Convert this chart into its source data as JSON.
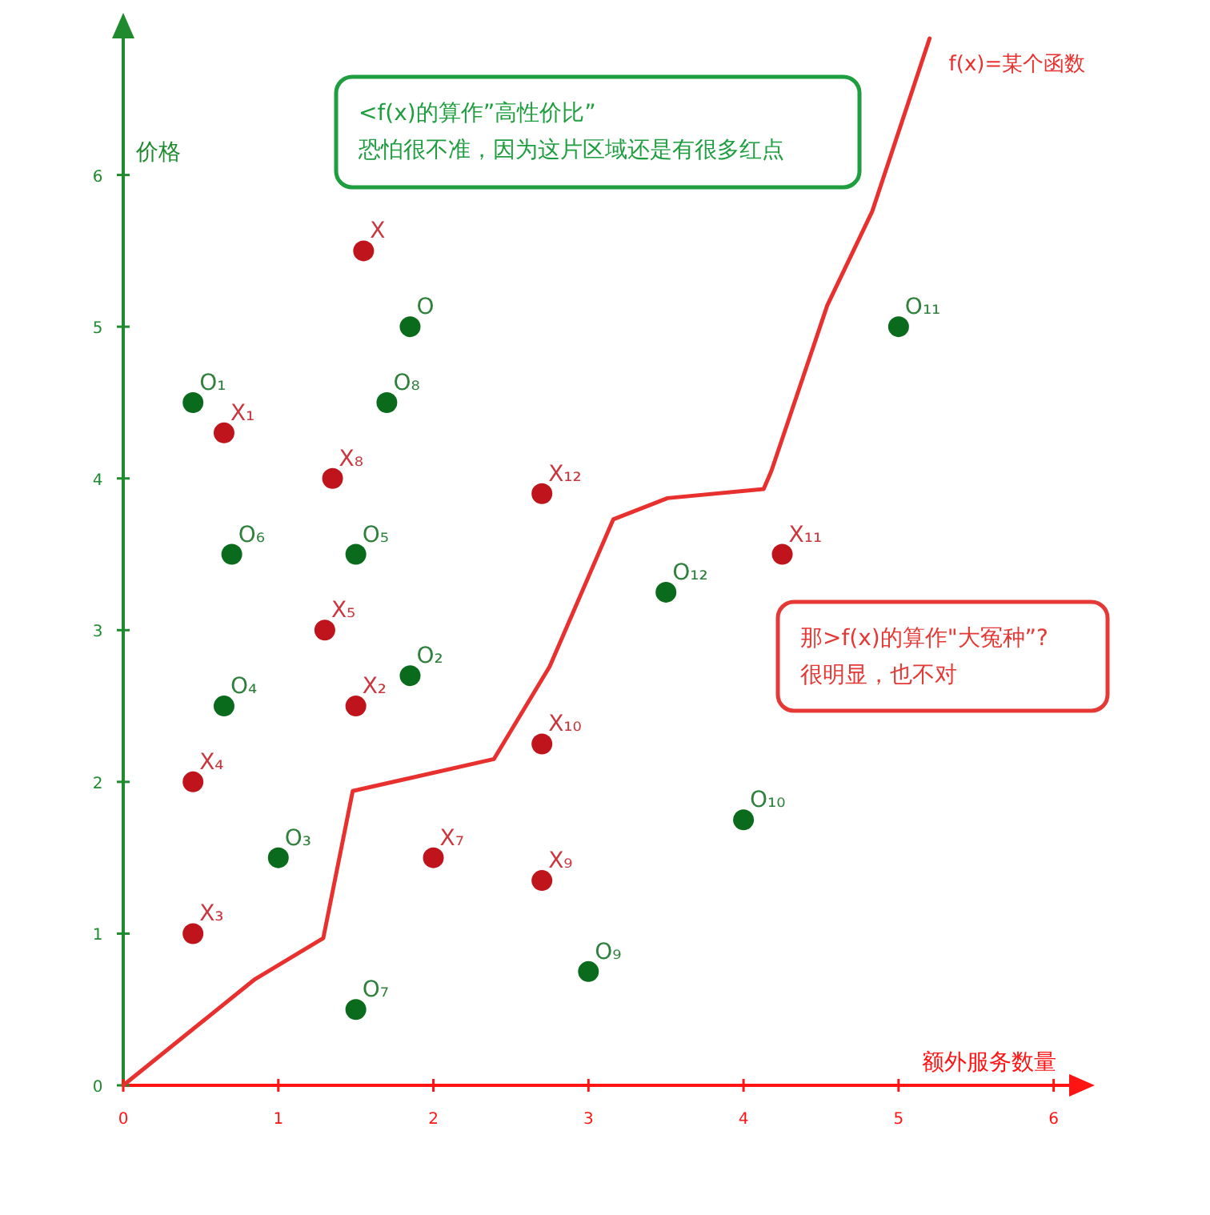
{
  "chart_data": {
    "type": "scatter",
    "xlabel": "额外服务数量",
    "ylabel": "价格",
    "xlim": [
      0,
      6.1
    ],
    "ylim": [
      0,
      6.9
    ],
    "xticks": [
      0,
      1,
      2,
      3,
      4,
      5,
      6
    ],
    "yticks": [
      0,
      1,
      2,
      3,
      4,
      5,
      6
    ],
    "grid": false,
    "marker": "circle",
    "annotations": [
      "<f(x)的算作”高性价比”\n恐怕很不准，因为这片区域还是有很多红点",
      "那>f(x)的算作\"大冤种”?\n很明显，也不对"
    ],
    "series": [
      {
        "color": "#0b6b1c",
        "x": [
          0.45,
          1.85,
          1.0,
          0.65,
          1.5,
          0.7,
          1.5,
          1.7,
          3.0,
          4.0,
          5.0,
          3.5,
          1.85
        ],
        "values": [
          4.5,
          2.7,
          1.5,
          2.5,
          3.5,
          3.5,
          0.5,
          4.5,
          0.75,
          1.75,
          5.0,
          3.25,
          5.0
        ],
        "value_labels": [
          "O₁",
          "O₂",
          "O₃",
          "O₄",
          "O₅",
          "O₆",
          "O₇",
          "O₈",
          "O₉",
          "O₁₀",
          "O₁₁",
          "O₁₂",
          "O"
        ]
      },
      {
        "color": "#c0141c",
        "x": [
          0.65,
          1.5,
          0.45,
          0.45,
          1.3,
          2.0,
          1.35,
          2.7,
          2.7,
          4.25,
          2.7,
          1.55
        ],
        "values": [
          4.3,
          2.5,
          1.0,
          2.0,
          3.0,
          1.5,
          4.0,
          1.35,
          2.25,
          3.5,
          3.9,
          5.5
        ],
        "value_labels": [
          "X₁",
          "X₂",
          "X₃",
          "X₄",
          "X₅",
          "X₇",
          "X₈",
          "X₉",
          "X₁₀",
          "X₁₁",
          "X₁₂",
          "X"
        ]
      },
      {
        "type": "line",
        "name": "f(x)=某个函数",
        "color": "#e8312f",
        "marker": "none",
        "x": [
          0,
          0.85,
          1.29,
          1.48,
          2.39,
          2.75,
          3.16,
          3.51,
          4.13,
          4.18,
          4.54,
          4.83,
          5.2
        ],
        "values": [
          0,
          0.7,
          0.97,
          1.94,
          2.15,
          2.76,
          3.73,
          3.87,
          3.93,
          4.05,
          5.14,
          5.76,
          6.9
        ]
      }
    ]
  }
}
